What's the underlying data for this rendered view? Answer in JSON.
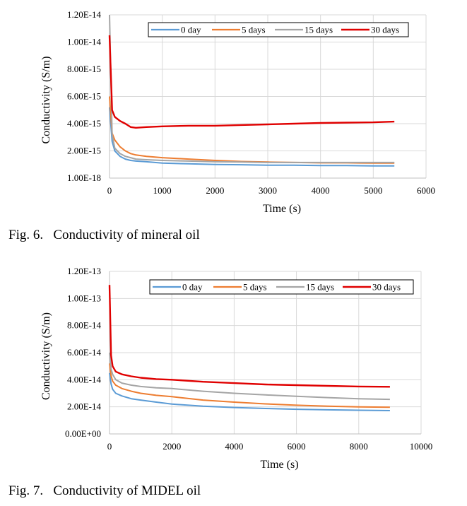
{
  "figures": [
    {
      "caption": "Fig. 6.   Conductivity of mineral oil",
      "ytick_labels": [
        "1.00E-18",
        "2.00E-15",
        "4.00E-15",
        "6.00E-15",
        "8.00E-15",
        "1.00E-14",
        "1.20E-14"
      ],
      "xtick_labels": [
        "0",
        "1000",
        "2000",
        "3000",
        "4000",
        "5000",
        "6000"
      ]
    },
    {
      "caption": "Fig. 7.   Conductivity of MIDEL oil",
      "ytick_labels": [
        "0.00E+00",
        "2.00E-14",
        "4.00E-14",
        "6.00E-14",
        "8.00E-14",
        "1.00E-13",
        "1.20E-13"
      ],
      "xtick_labels": [
        "0",
        "2000",
        "4000",
        "6000",
        "8000",
        "10000"
      ]
    }
  ],
  "colors": {
    "0 day": "#5b9bd5",
    "5 days": "#ed7d31",
    "15 days": "#a5a5a5",
    "30 days": "#e00000",
    "grid": "#d9d9d9",
    "legend_border": "#000000"
  },
  "chart_data": [
    {
      "type": "line",
      "xlabel": "Time (s)",
      "ylabel": "Conductivity (S/m)",
      "xlim": [
        0,
        6000
      ],
      "ylim": [
        0,
        1.2e-14
      ],
      "grid": true,
      "legend_placement": "top-right",
      "x": [
        0,
        50,
        100,
        200,
        300,
        400,
        500,
        700,
        1000,
        1500,
        2000,
        2500,
        3000,
        3500,
        4000,
        4500,
        5000,
        5400
      ],
      "series": [
        {
          "name": "0 day",
          "values": [
            5.2e-15,
            2.7e-15,
            2e-15,
            1.6e-15,
            1.4e-15,
            1.3e-15,
            1.25e-15,
            1.2e-15,
            1.1e-15,
            1.05e-15,
            1e-15,
            9.8e-16,
            9.5e-16,
            9.5e-16,
            9.2e-16,
            9.2e-16,
            9e-16,
            9e-16
          ]
        },
        {
          "name": "5 days",
          "values": [
            6e-15,
            3.3e-15,
            2.8e-15,
            2.3e-15,
            2e-15,
            1.8e-15,
            1.7e-15,
            1.6e-15,
            1.5e-15,
            1.4e-15,
            1.3e-15,
            1.22e-15,
            1.18e-15,
            1.15e-15,
            1.12e-15,
            1.12e-15,
            1.1e-15,
            1.1e-15
          ]
        },
        {
          "name": "15 days",
          "values": [
            1.2e-14,
            3.2e-15,
            2.2e-15,
            1.8e-15,
            1.6e-15,
            1.5e-15,
            1.4e-15,
            1.35e-15,
            1.3e-15,
            1.25e-15,
            1.2e-15,
            1.18e-15,
            1.15e-15,
            1.15e-15,
            1.15e-15,
            1.15e-15,
            1.15e-15,
            1.15e-15
          ]
        },
        {
          "name": "30 days",
          "values": [
            1.05e-14,
            5e-15,
            4.5e-15,
            4.2e-15,
            4e-15,
            3.75e-15,
            3.7e-15,
            3.75e-15,
            3.8e-15,
            3.85e-15,
            3.85e-15,
            3.9e-15,
            3.95e-15,
            4e-15,
            4.05e-15,
            4.08e-15,
            4.1e-15,
            4.15e-15
          ]
        }
      ]
    },
    {
      "type": "line",
      "xlabel": "Time (s)",
      "ylabel": "Conductivity (S/m)",
      "xlim": [
        0,
        10000
      ],
      "ylim": [
        0,
        1.2e-13
      ],
      "grid": true,
      "legend_placement": "top-right",
      "x": [
        0,
        50,
        100,
        200,
        400,
        700,
        1000,
        1500,
        2000,
        3000,
        4000,
        5000,
        6000,
        7000,
        8000,
        9000
      ],
      "series": [
        {
          "name": "0 day",
          "values": [
            4.5e-14,
            3.7e-14,
            3.3e-14,
            3e-14,
            2.8e-14,
            2.6e-14,
            2.5e-14,
            2.35e-14,
            2.2e-14,
            2.05e-14,
            1.95e-14,
            1.88e-14,
            1.82e-14,
            1.78e-14,
            1.75e-14,
            1.72e-14
          ]
        },
        {
          "name": "5 days",
          "values": [
            5.2e-14,
            4.3e-14,
            3.9e-14,
            3.6e-14,
            3.35e-14,
            3.15e-14,
            3e-14,
            2.85e-14,
            2.75e-14,
            2.5e-14,
            2.35e-14,
            2.22e-14,
            2.12e-14,
            2.05e-14,
            2e-14,
            1.97e-14
          ]
        },
        {
          "name": "15 days",
          "values": [
            6e-14,
            4.8e-14,
            4.4e-14,
            4e-14,
            3.75e-14,
            3.6e-14,
            3.5e-14,
            3.4e-14,
            3.35e-14,
            3.15e-14,
            3e-14,
            2.88e-14,
            2.78e-14,
            2.68e-14,
            2.6e-14,
            2.55e-14
          ]
        },
        {
          "name": "30 days",
          "values": [
            1.1e-13,
            5.8e-14,
            5e-14,
            4.6e-14,
            4.4e-14,
            4.25e-14,
            4.15e-14,
            4.05e-14,
            4e-14,
            3.85e-14,
            3.75e-14,
            3.65e-14,
            3.6e-14,
            3.55e-14,
            3.5e-14,
            3.48e-14
          ]
        }
      ]
    }
  ]
}
